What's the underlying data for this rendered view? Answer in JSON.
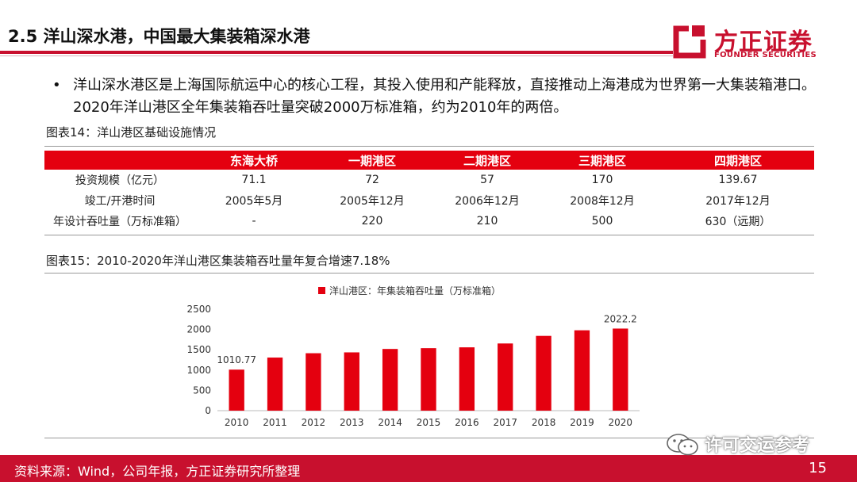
{
  "header": {
    "title": "2.5 洋山深水港，中国最大集装箱深水港",
    "logo_cn": "方正证券",
    "logo_en": "FOUNDER SECURITIES"
  },
  "bullet": "洋山深水港区是上海国际航运中心的核心工程，其投入使用和产能释放，直接推动上海港成为世界第一大集装箱港口。2020年洋山港区全年集装箱吞吐量突破2000万标准箱，约为2010年的两倍。",
  "table": {
    "caption": "图表14：洋山港区基础设施情况",
    "columns": [
      "",
      "东海大桥",
      "一期港区",
      "二期港区",
      "三期港区",
      "四期港区"
    ],
    "rows": [
      [
        "投资规模（亿元）",
        "71.1",
        "72",
        "57",
        "170",
        "139.67"
      ],
      [
        "竣工/开港时间",
        "2005年5月",
        "2005年12月",
        "2006年12月",
        "2008年12月",
        "2017年12月"
      ],
      [
        "年设计吞吐量（万标准箱）",
        "-",
        "220",
        "210",
        "500",
        "630（远期）"
      ]
    ]
  },
  "chart_caption": "图表15：2010-2020年洋山港区集装箱吞吐量年复合增速7.18%",
  "chart_data": {
    "type": "bar",
    "categories": [
      "2010",
      "2011",
      "2012",
      "2013",
      "2014",
      "2015",
      "2016",
      "2017",
      "2018",
      "2019",
      "2020"
    ],
    "series": [
      {
        "name": "洋山港区：年集装箱吞吐量（万标准箱）",
        "values": [
          1010.77,
          1308,
          1415,
          1436,
          1520,
          1540,
          1560,
          1655,
          1842,
          1980,
          2022.2
        ],
        "color": "#e4000f"
      }
    ],
    "data_labels": [
      {
        "category": "2010",
        "text": "1010.77"
      },
      {
        "category": "2020",
        "text": "2022.2"
      }
    ],
    "yticks": [
      "0",
      "500",
      "1000",
      "1500",
      "2000",
      "2500"
    ],
    "ylim": [
      0,
      2500
    ],
    "legend_position": "top-center",
    "grid": false
  },
  "footer": {
    "source": "资料来源：Wind，公司年报，方正证券研究所整理",
    "page": "15"
  },
  "watermark": "许可交运参考"
}
